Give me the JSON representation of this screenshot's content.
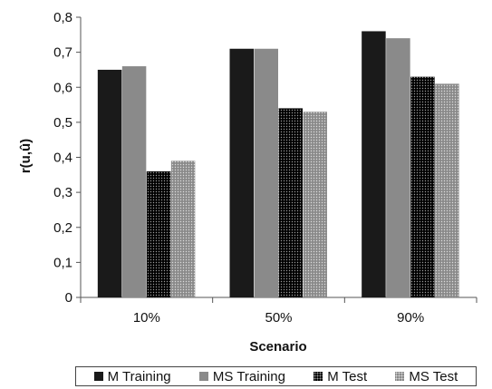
{
  "chart_data": {
    "type": "bar",
    "categories": [
      "10%",
      "50%",
      "90%"
    ],
    "series": [
      {
        "name": "M Training",
        "values": [
          0.65,
          0.71,
          0.76
        ],
        "color": "#1a1a1a"
      },
      {
        "name": "MS Training",
        "values": [
          0.66,
          0.71,
          0.74
        ],
        "color": "#8a8a8a"
      },
      {
        "name": "M Test",
        "values": [
          0.36,
          0.54,
          0.63
        ],
        "color": "#000000"
      },
      {
        "name": "MS Test",
        "values": [
          0.39,
          0.53,
          0.61
        ],
        "color": "#8a8a8a"
      }
    ],
    "xlabel": "Scenario",
    "ylabel": "r(u,û)",
    "ylim": [
      0,
      0.8
    ],
    "yticks": [
      "0",
      "0,1",
      "0,2",
      "0,3",
      "0,4",
      "0,5",
      "0,6",
      "0,7",
      "0,8"
    ],
    "grid": false,
    "legend_position": "bottom"
  }
}
